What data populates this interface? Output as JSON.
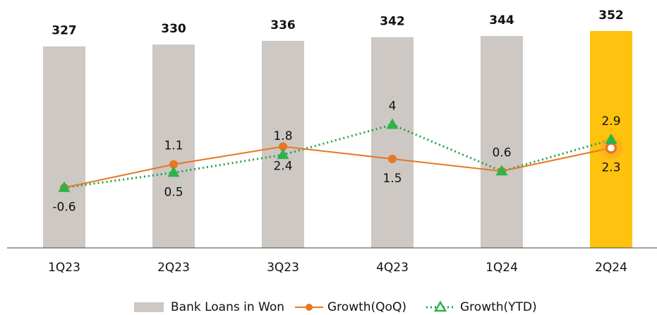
{
  "chart_data": {
    "type": "bar_line",
    "categories": [
      "1Q23",
      "2Q23",
      "3Q23",
      "4Q23",
      "1Q24",
      "2Q24"
    ],
    "series": [
      {
        "name": "Bank Loans in Won",
        "type": "bar",
        "colors": [
          "#cdc8c3",
          "#cdc8c3",
          "#cdc8c3",
          "#cdc8c3",
          "#cdc8c3",
          "#ffc20e"
        ],
        "values": [
          327,
          330,
          336,
          342,
          344,
          352
        ]
      },
      {
        "name": "Growth(QoQ)",
        "type": "line",
        "axis": "y2",
        "color": "#e87722",
        "values": [
          -0.6,
          1.1,
          2.4,
          1.5,
          0.6,
          2.3
        ]
      },
      {
        "name": "Growth(YTD)",
        "type": "line",
        "axis": "y2",
        "color": "#23a047",
        "values": [
          -0.6,
          0.5,
          1.8,
          4.0,
          0.6,
          2.9
        ]
      }
    ],
    "ylim": [
      0,
      400
    ],
    "y2lim": [
      -5,
      13
    ],
    "legend": "bottom"
  }
}
